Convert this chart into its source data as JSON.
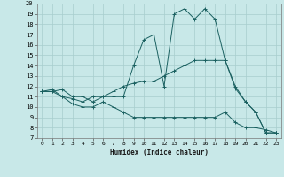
{
  "xlabel": "Humidex (Indice chaleur)",
  "background_color": "#c8e8e8",
  "grid_color": "#a8cece",
  "line_color": "#1a6060",
  "xlim": [
    -0.5,
    23.5
  ],
  "ylim": [
    7,
    20
  ],
  "xticks": [
    0,
    1,
    2,
    3,
    4,
    5,
    6,
    7,
    8,
    9,
    10,
    11,
    12,
    13,
    14,
    15,
    16,
    17,
    18,
    19,
    20,
    21,
    22,
    23
  ],
  "yticks": [
    7,
    8,
    9,
    10,
    11,
    12,
    13,
    14,
    15,
    16,
    17,
    18,
    19,
    20
  ],
  "line1_x": [
    0,
    1,
    2,
    3,
    4,
    5,
    6,
    7,
    8,
    9,
    10,
    11,
    12,
    13,
    14,
    15,
    16,
    17,
    18,
    19,
    20,
    21,
    22,
    23
  ],
  "line1_y": [
    11.5,
    11.5,
    11.7,
    11.0,
    11.0,
    10.5,
    11.0,
    11.0,
    11.0,
    14.0,
    16.5,
    17.0,
    12.0,
    19.0,
    19.5,
    18.5,
    19.5,
    18.5,
    14.5,
    11.8,
    10.5,
    9.5,
    7.5,
    7.5
  ],
  "line2_x": [
    0,
    1,
    2,
    3,
    4,
    5,
    6,
    7,
    8,
    9,
    10,
    11,
    12,
    13,
    14,
    15,
    16,
    17,
    18,
    19,
    20,
    21,
    22,
    23
  ],
  "line2_y": [
    11.5,
    11.7,
    11.0,
    10.8,
    10.5,
    11.0,
    11.0,
    11.5,
    12.0,
    12.3,
    12.5,
    12.5,
    13.0,
    13.5,
    14.0,
    14.5,
    14.5,
    14.5,
    14.5,
    12.0,
    10.5,
    9.5,
    7.5,
    7.5
  ],
  "line3_x": [
    0,
    1,
    2,
    3,
    4,
    5,
    6,
    7,
    8,
    9,
    10,
    11,
    12,
    13,
    14,
    15,
    16,
    17,
    18,
    19,
    20,
    21,
    22,
    23
  ],
  "line3_y": [
    11.5,
    11.5,
    11.0,
    10.3,
    10.0,
    10.0,
    10.5,
    10.0,
    9.5,
    9.0,
    9.0,
    9.0,
    9.0,
    9.0,
    9.0,
    9.0,
    9.0,
    9.0,
    9.5,
    8.5,
    8.0,
    8.0,
    7.8,
    7.5
  ]
}
